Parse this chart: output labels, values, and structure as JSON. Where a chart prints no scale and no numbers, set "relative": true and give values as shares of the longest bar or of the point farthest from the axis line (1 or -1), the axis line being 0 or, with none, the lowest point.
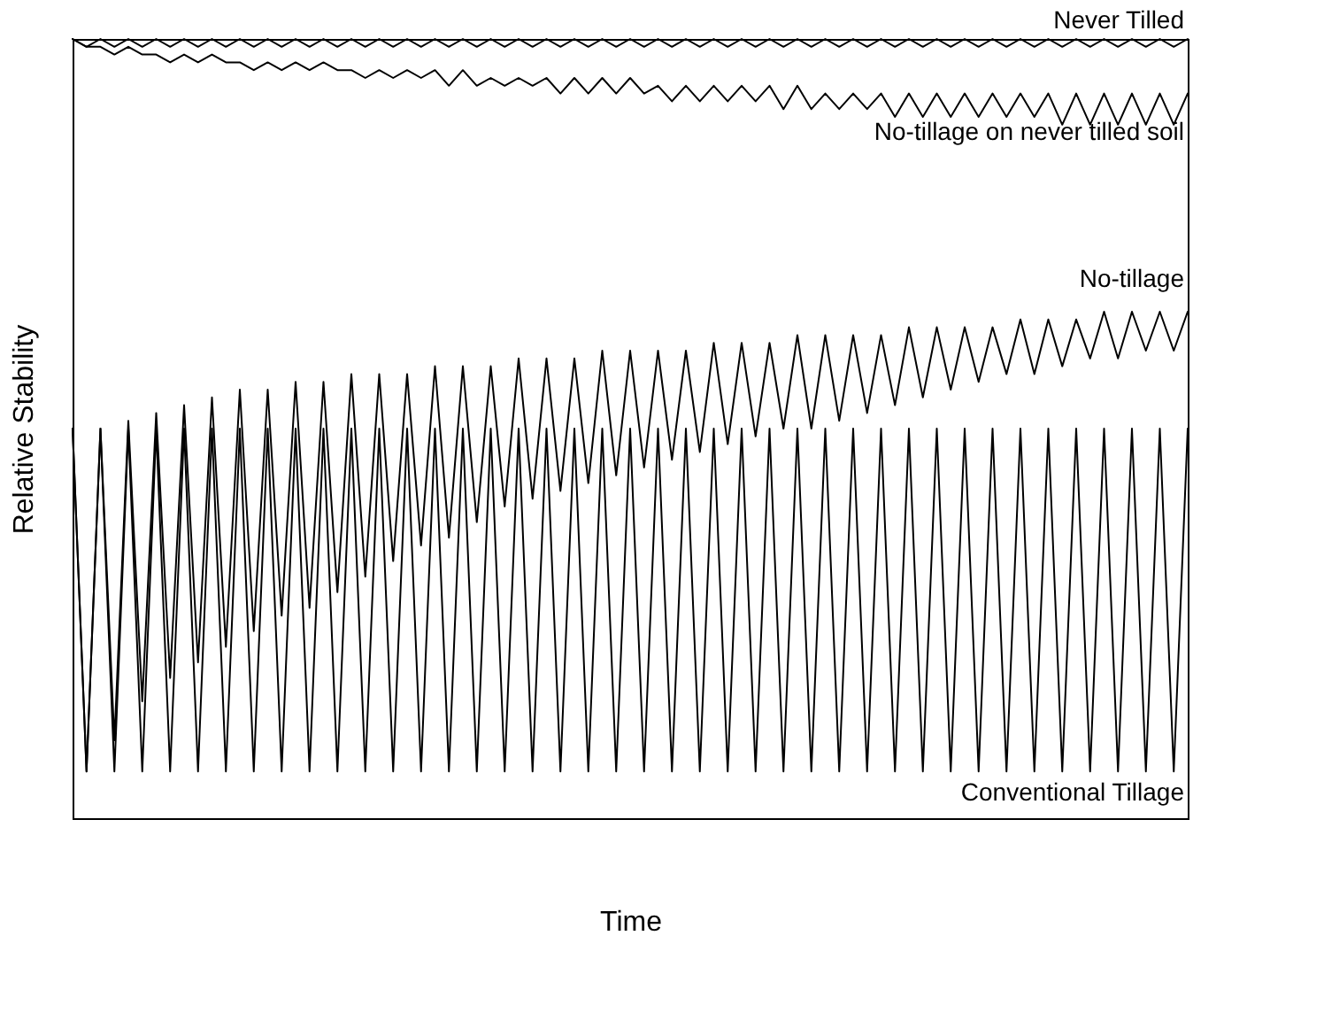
{
  "chart_data": {
    "type": "line",
    "relative": true,
    "xlabel": "Time",
    "ylabel": "Relative Stability",
    "categories": [
      null,
      null,
      null,
      null,
      null,
      null,
      null,
      null,
      null,
      null,
      null,
      null,
      null,
      null,
      null,
      null,
      null,
      null,
      null,
      null,
      null,
      null,
      null,
      null,
      null,
      null,
      null,
      null,
      null,
      null,
      null,
      null,
      null,
      null,
      null,
      null,
      null,
      null,
      null,
      null,
      null,
      null,
      null,
      null,
      null,
      null,
      null,
      null,
      null,
      null,
      null,
      null,
      null,
      null,
      null,
      null,
      null,
      null,
      null,
      null,
      null,
      null,
      null,
      null,
      null,
      null,
      null,
      null,
      null,
      null,
      null,
      null,
      null,
      null,
      null,
      null,
      null,
      null,
      null,
      null,
      null
    ],
    "series": [
      {
        "name": "Never Tilled",
        "color": "#000000",
        "values": [
          1.0,
          0.99,
          1.0,
          0.99,
          1.0,
          0.99,
          1.0,
          0.99,
          1.0,
          0.99,
          1.0,
          0.99,
          1.0,
          0.99,
          1.0,
          0.99,
          1.0,
          0.99,
          1.0,
          0.99,
          1.0,
          0.99,
          1.0,
          0.99,
          1.0,
          0.99,
          1.0,
          0.99,
          1.0,
          0.99,
          1.0,
          0.99,
          1.0,
          0.99,
          1.0,
          0.99,
          1.0,
          0.99,
          1.0,
          0.99,
          1.0,
          0.99,
          1.0,
          0.99,
          1.0,
          0.99,
          1.0,
          0.99,
          1.0,
          0.99,
          1.0,
          0.99,
          1.0,
          0.99,
          1.0,
          0.99,
          1.0,
          0.99,
          1.0,
          0.99,
          1.0,
          0.99,
          1.0,
          0.99,
          1.0,
          0.99,
          1.0,
          0.99,
          1.0,
          0.99,
          1.0,
          0.99,
          1.0,
          0.99,
          1.0,
          0.99,
          1.0,
          0.99,
          1.0,
          0.99,
          1.0
        ]
      },
      {
        "name": "No-tillage on never tilled soil",
        "color": "#000000",
        "values": [
          1.0,
          0.99,
          0.99,
          0.98,
          0.99,
          0.98,
          0.98,
          0.97,
          0.98,
          0.97,
          0.98,
          0.97,
          0.97,
          0.96,
          0.97,
          0.96,
          0.97,
          0.96,
          0.97,
          0.96,
          0.96,
          0.95,
          0.96,
          0.95,
          0.96,
          0.95,
          0.96,
          0.94,
          0.96,
          0.94,
          0.95,
          0.94,
          0.95,
          0.94,
          0.95,
          0.93,
          0.95,
          0.93,
          0.95,
          0.93,
          0.95,
          0.93,
          0.94,
          0.92,
          0.94,
          0.92,
          0.94,
          0.92,
          0.94,
          0.92,
          0.94,
          0.91,
          0.94,
          0.91,
          0.93,
          0.91,
          0.93,
          0.91,
          0.93,
          0.9,
          0.93,
          0.9,
          0.93,
          0.9,
          0.93,
          0.9,
          0.93,
          0.9,
          0.93,
          0.9,
          0.93,
          0.89,
          0.93,
          0.89,
          0.93,
          0.89,
          0.93,
          0.89,
          0.93,
          0.89,
          0.93
        ]
      },
      {
        "name": "No-tillage",
        "color": "#000000",
        "values": [
          0.5,
          0.06,
          0.5,
          0.1,
          0.51,
          0.15,
          0.52,
          0.18,
          0.53,
          0.2,
          0.54,
          0.22,
          0.55,
          0.24,
          0.55,
          0.26,
          0.56,
          0.27,
          0.56,
          0.29,
          0.57,
          0.31,
          0.57,
          0.33,
          0.57,
          0.35,
          0.58,
          0.36,
          0.58,
          0.38,
          0.58,
          0.4,
          0.59,
          0.41,
          0.59,
          0.42,
          0.59,
          0.43,
          0.6,
          0.44,
          0.6,
          0.45,
          0.6,
          0.46,
          0.6,
          0.47,
          0.61,
          0.48,
          0.61,
          0.49,
          0.61,
          0.5,
          0.62,
          0.5,
          0.62,
          0.51,
          0.62,
          0.52,
          0.62,
          0.53,
          0.63,
          0.54,
          0.63,
          0.55,
          0.63,
          0.56,
          0.63,
          0.57,
          0.64,
          0.57,
          0.64,
          0.58,
          0.64,
          0.59,
          0.65,
          0.59,
          0.65,
          0.6,
          0.65,
          0.6,
          0.65
        ]
      },
      {
        "name": "Conventional Tillage",
        "color": "#000000",
        "values": [
          0.5,
          0.06,
          0.5,
          0.06,
          0.5,
          0.06,
          0.5,
          0.06,
          0.5,
          0.06,
          0.5,
          0.06,
          0.5,
          0.06,
          0.5,
          0.06,
          0.5,
          0.06,
          0.5,
          0.06,
          0.5,
          0.06,
          0.5,
          0.06,
          0.5,
          0.06,
          0.5,
          0.06,
          0.5,
          0.06,
          0.5,
          0.06,
          0.5,
          0.06,
          0.5,
          0.06,
          0.5,
          0.06,
          0.5,
          0.06,
          0.5,
          0.06,
          0.5,
          0.06,
          0.5,
          0.06,
          0.5,
          0.06,
          0.5,
          0.06,
          0.5,
          0.06,
          0.5,
          0.06,
          0.5,
          0.06,
          0.5,
          0.06,
          0.5,
          0.06,
          0.5,
          0.06,
          0.5,
          0.06,
          0.5,
          0.06,
          0.5,
          0.06,
          0.5,
          0.06,
          0.5,
          0.06,
          0.5,
          0.06,
          0.5,
          0.06,
          0.5,
          0.06,
          0.5,
          0.06,
          0.5
        ]
      }
    ]
  }
}
